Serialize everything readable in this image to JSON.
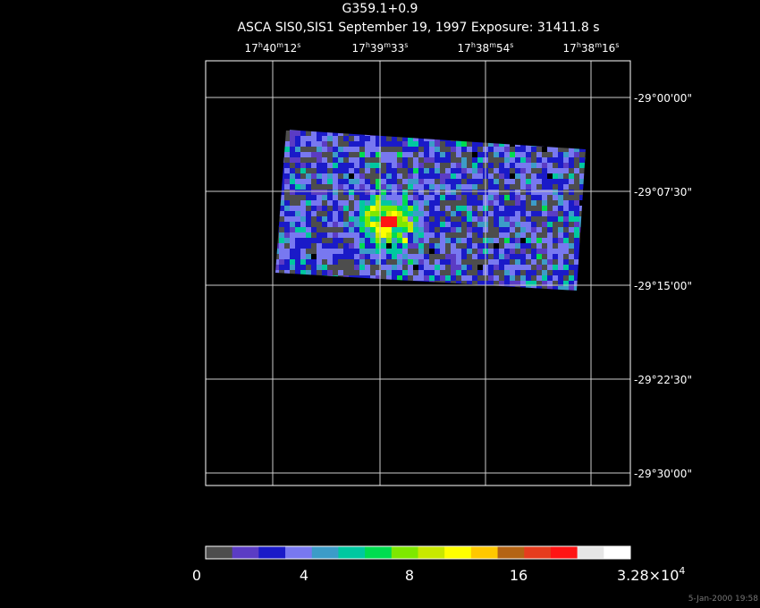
{
  "title": "G359.1+0.9",
  "subtitle": "ASCA SIS0,SIS1 September 19, 1997 Exposure: 31411.8 s",
  "ra_labels": [
    [
      "17",
      "h",
      "40",
      "m",
      "12",
      "s"
    ],
    [
      "17",
      "h",
      "39",
      "m",
      "33",
      "s"
    ],
    [
      "17",
      "h",
      "38",
      "m",
      "54",
      "s"
    ],
    [
      "17",
      "h",
      "38",
      "m",
      "16",
      "s"
    ]
  ],
  "dec_labels": [
    "-29°00'00\"",
    "-29°07'30\"",
    "-29°15'00\"",
    "-29°22'30\"",
    "-29°30'00\""
  ],
  "colorbar": {
    "colors": [
      "#4d4d4d",
      "#5b3cc4",
      "#1a1ac8",
      "#7878f0",
      "#3c9cc8",
      "#00c8a0",
      "#00dc50",
      "#7ee800",
      "#c8e800",
      "#ffff00",
      "#ffc800",
      "#b46414",
      "#e63c1e",
      "#ff1414",
      "#e6e6e6",
      "#ffffff"
    ],
    "labels": [
      "0",
      "4",
      "8",
      "16"
    ],
    "max_label": [
      "3.28×10",
      "4"
    ]
  },
  "timestamp": "5-Jan-2000 19:58"
}
